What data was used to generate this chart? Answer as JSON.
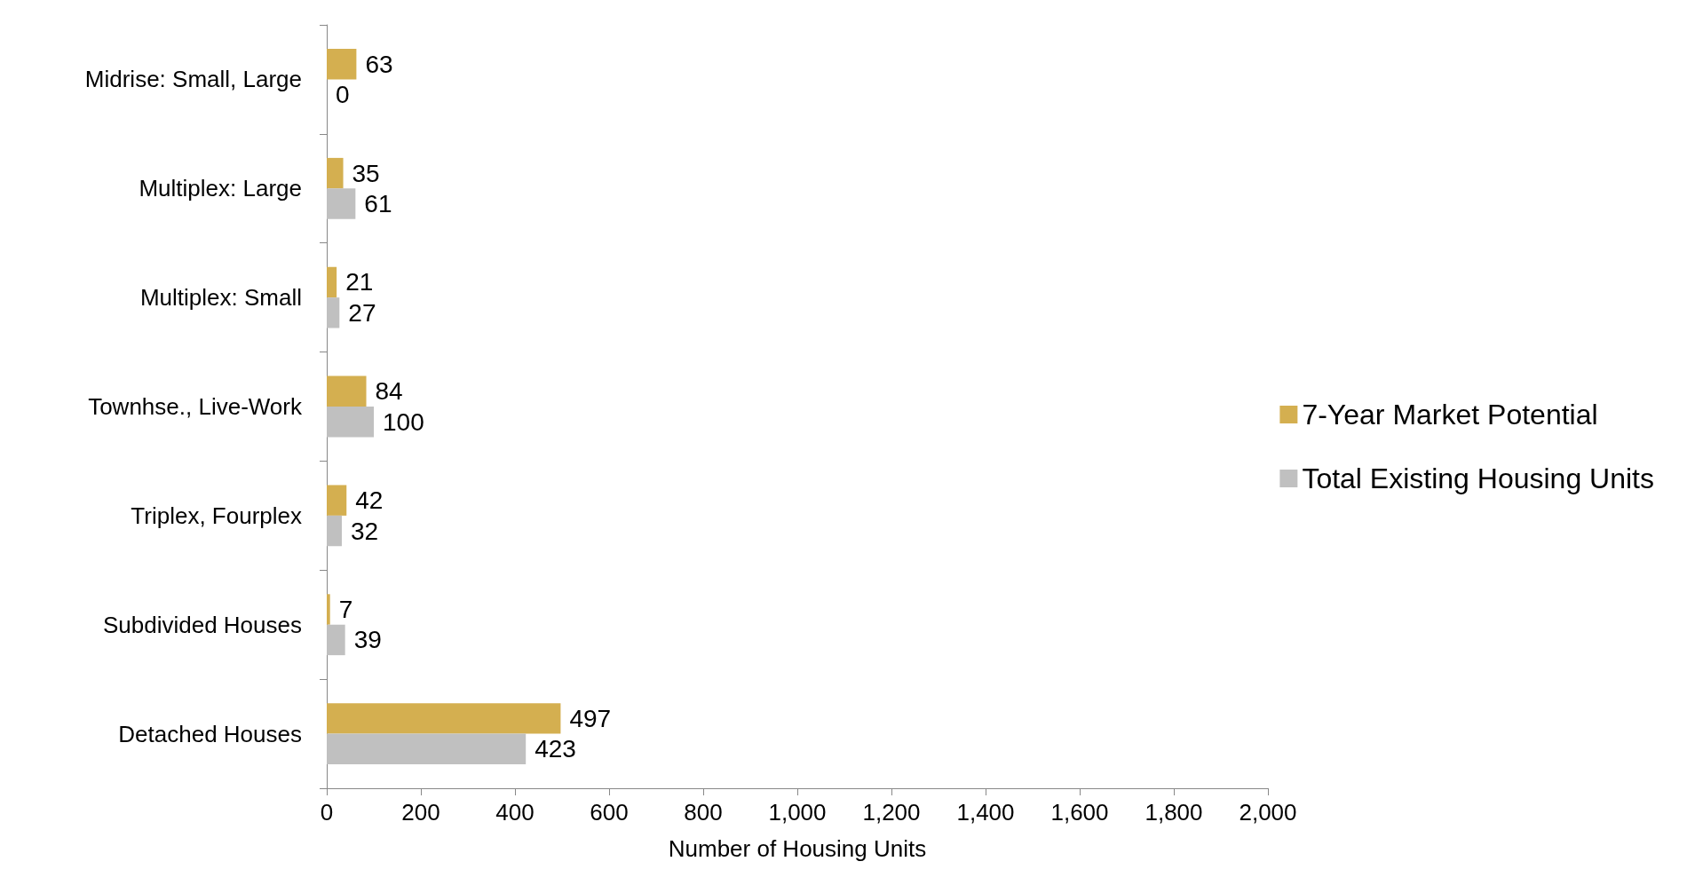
{
  "chart_data": {
    "type": "bar",
    "orientation": "horizontal",
    "xlabel": "Number of Housing Units",
    "categories": [
      "Midrise: Small, Large",
      "Multiplex: Large",
      "Multiplex: Small",
      "Townhse., Live-Work",
      "Triplex, Fourplex",
      "Subdivided Houses",
      "Detached Houses"
    ],
    "series": [
      {
        "name": "7-Year Market Potential",
        "color": "#d4af50",
        "values": [
          63,
          35,
          21,
          84,
          42,
          7,
          497
        ]
      },
      {
        "name": "Total Existing Housing Units",
        "color": "#c0c0c0",
        "values": [
          0,
          61,
          27,
          100,
          32,
          39,
          423
        ]
      }
    ],
    "xlim": [
      0,
      2000
    ],
    "xticks": [
      0,
      200,
      400,
      600,
      800,
      {
        "value": 1000,
        "label": "1,000"
      },
      {
        "value": 1200,
        "label": "1,200"
      },
      {
        "value": 1400,
        "label": "1,400"
      },
      {
        "value": 1600,
        "label": "1,600"
      },
      {
        "value": 1800,
        "label": "1,800"
      },
      {
        "value": 2000,
        "label": "2,000"
      }
    ],
    "data_labels": true,
    "grid": false,
    "legend": "right"
  }
}
